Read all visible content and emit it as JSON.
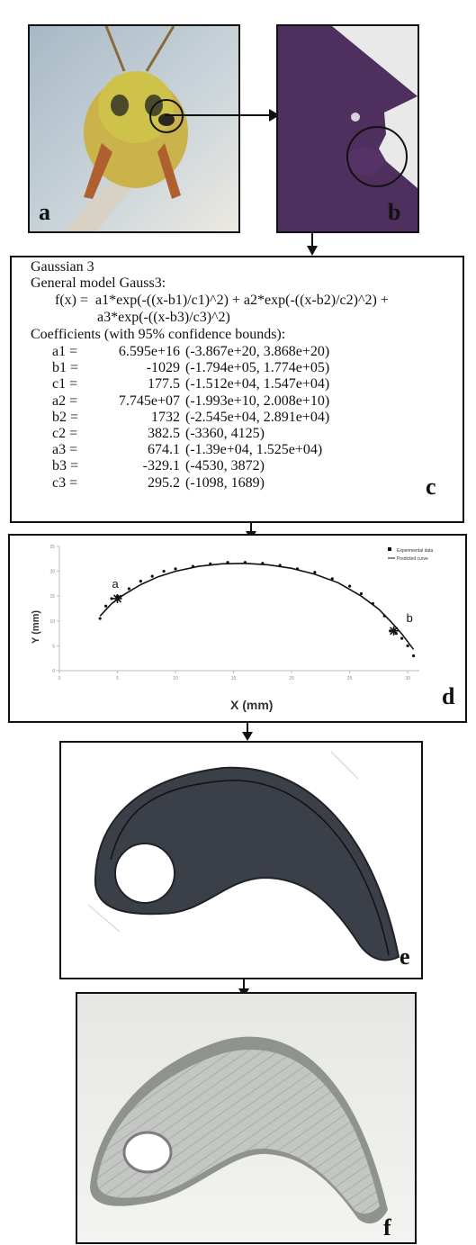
{
  "panels": {
    "a": {
      "label": "a"
    },
    "b": {
      "label": "b"
    },
    "c": {
      "label": "c"
    },
    "d": {
      "label": "d"
    },
    "e": {
      "label": "e"
    },
    "f": {
      "label": "f"
    }
  },
  "fit_report": {
    "title": "Gaussian 3",
    "model": "General model Gauss3:",
    "formula_line1": "f(x) =  a1*exp(-((x-b1)/c1)^2) + a2*exp(-((x-b2)/c2)^2) +",
    "formula_line2": "a3*exp(-((x-b3)/c3)^2)",
    "coef_header": "Coefficients (with 95% confidence bounds):",
    "coefficients": [
      {
        "name": "a1 =",
        "value": "6.595e+16",
        "bounds": "(-3.867e+20, 3.868e+20)"
      },
      {
        "name": "b1 =",
        "value": "-1029",
        "bounds": "(-1.794e+05, 1.774e+05)"
      },
      {
        "name": "c1 =",
        "value": "177.5",
        "bounds": "(-1.512e+04, 1.547e+04)"
      },
      {
        "name": "a2 =",
        "value": "7.745e+07",
        "bounds": "(-1.993e+10, 2.008e+10)"
      },
      {
        "name": "b2 =",
        "value": "1732",
        "bounds": "(-2.545e+04, 2.891e+04)"
      },
      {
        "name": "c2 =",
        "value": "382.5",
        "bounds": "(-3360, 4125)"
      },
      {
        "name": "a3 =",
        "value": "674.1",
        "bounds": "(-1.39e+04, 1.525e+04)"
      },
      {
        "name": "b3 =",
        "value": "-329.1",
        "bounds": "(-4530, 3872)"
      },
      {
        "name": "c3 =",
        "value": "295.2",
        "bounds": "(-1098, 1689)"
      }
    ]
  },
  "chart_data": {
    "type": "scatter",
    "xlabel": "X (mm)",
    "ylabel": "Y (mm)",
    "xlim": [
      0,
      31
    ],
    "ylim": [
      0,
      25
    ],
    "xticks": [
      0,
      5,
      10,
      15,
      20,
      25,
      30
    ],
    "yticks": [
      0,
      5,
      10,
      15,
      20,
      25
    ],
    "legend_position": "top-right",
    "series": [
      {
        "name": "Experimental data",
        "x": [
          3.5,
          4.0,
          4.5,
          5.0,
          6.0,
          7.0,
          8.0,
          9.0,
          10.0,
          11.5,
          13.0,
          14.5,
          16.0,
          17.5,
          19.0,
          20.5,
          22.0,
          23.5,
          25.0,
          26.0,
          27.0,
          28.0,
          28.5,
          29.0,
          29.5,
          30.0,
          30.5
        ],
        "y": [
          10.5,
          13.0,
          14.5,
          15.0,
          16.5,
          18.0,
          19.0,
          20.0,
          20.5,
          21.0,
          21.5,
          21.8,
          21.8,
          21.6,
          21.2,
          20.5,
          19.8,
          18.5,
          17.0,
          15.5,
          13.5,
          11.0,
          8.0,
          7.5,
          6.5,
          5.0,
          3.0
        ]
      },
      {
        "name": "Predicted curve",
        "x": [
          3.5,
          4.5,
          5.5,
          7.0,
          8.5,
          10.0,
          12.0,
          14.0,
          16.0,
          18.0,
          20.0,
          22.0,
          24.0,
          26.0,
          27.5,
          28.5,
          29.5,
          30.5
        ],
        "y": [
          11.0,
          13.5,
          15.2,
          17.3,
          18.9,
          20.0,
          21.0,
          21.5,
          21.6,
          21.3,
          20.6,
          19.4,
          17.7,
          15.0,
          12.4,
          10.0,
          7.4,
          4.3
        ]
      }
    ],
    "annotations": [
      {
        "text": "a",
        "x": 5.0,
        "y": 14.5
      },
      {
        "text": "b",
        "x": 28.8,
        "y": 8.0
      }
    ]
  }
}
